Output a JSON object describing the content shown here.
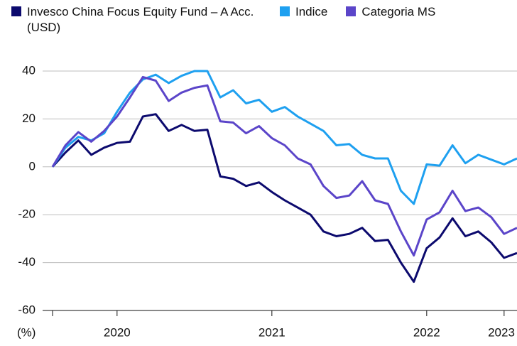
{
  "chart_data": {
    "type": "line",
    "categories": [
      null,
      null,
      null,
      null,
      null,
      "2020",
      null,
      null,
      null,
      null,
      null,
      null,
      null,
      null,
      null,
      null,
      null,
      "2021",
      null,
      null,
      null,
      null,
      null,
      null,
      null,
      null,
      null,
      null,
      null,
      "2022",
      null,
      null,
      null,
      null,
      null,
      "2023",
      null
    ],
    "series": [
      {
        "name": "Invesco China Focus Equity Fund – A Acc. (USD)",
        "color": "#0c0a6e",
        "values": [
          0,
          6,
          11,
          5,
          8,
          10,
          10.5,
          21,
          22,
          15,
          17.5,
          15,
          15.5,
          -4,
          -5,
          -8,
          -6.5,
          -10.5,
          -14,
          -17,
          -20,
          -27,
          -29,
          -28,
          -25.5,
          -31,
          -30.5,
          -40,
          -48,
          -34,
          -29.5,
          -21.5,
          -29,
          -27,
          -31.5,
          -38,
          -36
        ]
      },
      {
        "name": "Indice",
        "color": "#1ea0f0",
        "values": [
          0,
          8,
          12.5,
          11,
          14,
          23,
          31,
          36.5,
          38.5,
          35,
          38,
          40,
          40,
          29,
          32,
          26.5,
          28,
          23,
          25,
          21,
          18,
          15,
          9,
          9.5,
          5,
          3.5,
          3.5,
          -10,
          -15.5,
          1,
          0.5,
          9,
          1.5,
          5,
          3,
          1,
          3.5
        ]
      },
      {
        "name": "Categoria MS",
        "color": "#5b45c9",
        "values": [
          0,
          9,
          14.5,
          10.5,
          15,
          21,
          29,
          37.5,
          36,
          27.5,
          31,
          33,
          34,
          19,
          18.5,
          14,
          17,
          12,
          9,
          3.5,
          1,
          -8,
          -13,
          -12,
          -6,
          -14,
          -15.5,
          -27,
          -37,
          -22,
          -19,
          -10,
          -18.5,
          -17,
          -21,
          -28,
          -25.5
        ]
      }
    ],
    "ylim": [
      -60,
      40
    ],
    "yticks": [
      -60,
      -40,
      -20,
      0,
      20,
      40
    ],
    "grid": true,
    "y_unit_label": "(%)"
  }
}
